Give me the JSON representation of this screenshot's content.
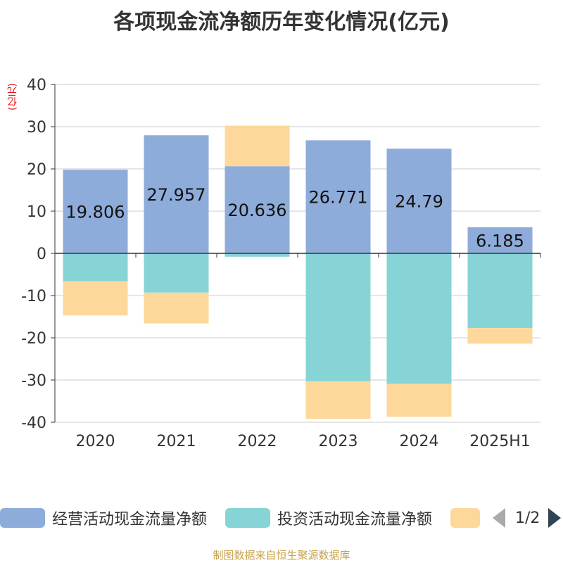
{
  "title": "各项现金流净额历年变化情况(亿元)",
  "unit_label": "(亿元)",
  "source": "制图数据来自恒生聚源数据库",
  "legend": {
    "items": [
      {
        "label": "经营活动现金流量净额",
        "color": "#8eacd9"
      },
      {
        "label": "投资活动现金流量净额",
        "color": "#86d4d6"
      },
      {
        "label": "",
        "color": "#fdd89a"
      }
    ],
    "page_text": "1/2"
  },
  "chart_data": {
    "type": "bar",
    "stacked": true,
    "categories": [
      "2020",
      "2021",
      "2022",
      "2023",
      "2024",
      "2025H1"
    ],
    "ylim": [
      -40,
      40
    ],
    "yticks": [
      40,
      30,
      20,
      10,
      0,
      -10,
      -20,
      -30,
      -40
    ],
    "grid": true,
    "legend_position": "bottom",
    "series": [
      {
        "name": "经营活动现金流量净额",
        "color": "#8eacd9",
        "values": [
          19.806,
          27.957,
          20.636,
          26.771,
          24.79,
          6.185
        ],
        "labels": [
          "19.806",
          "27.957",
          "20.636",
          "26.771",
          "24.79",
          "6.185"
        ]
      },
      {
        "name": "投资活动现金流量净额",
        "color": "#86d4d6",
        "values": [
          -6.6,
          -9.3,
          -0.8,
          -30.3,
          -30.9,
          -17.7
        ]
      },
      {
        "color": "#fdd89a",
        "values": [
          -8.1,
          -7.3,
          9.6,
          -8.9,
          -7.8,
          -3.7
        ]
      }
    ]
  }
}
